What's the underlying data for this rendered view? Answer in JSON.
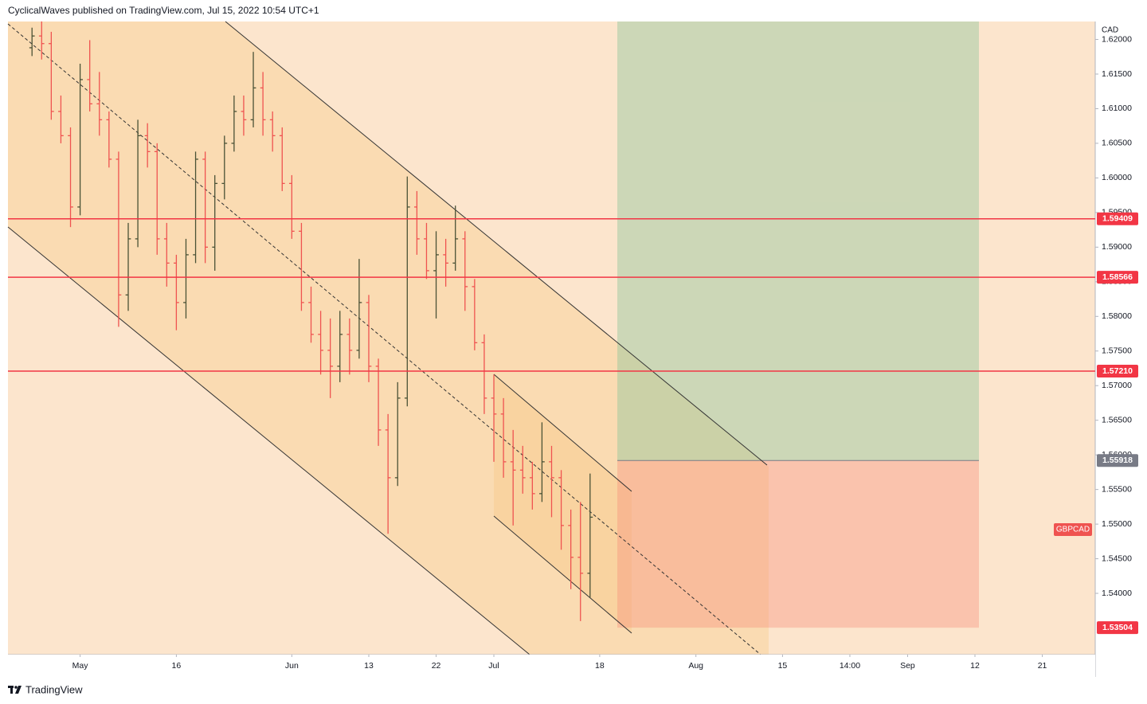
{
  "header": {
    "text": "CyclicalWaves published on TradingView.com, Jul 15, 2022 10:54 UTC+1"
  },
  "footer": {
    "brand": "TradingView"
  },
  "chart_data": {
    "type": "ohlc",
    "symbol": "GBPCAD",
    "currency": "CAD",
    "up_color": "#4a5236",
    "down_color": "#ef5350",
    "grid": false,
    "ylim": [
      1.53115,
      1.62259
    ],
    "yticks": [
      {
        "value": 1.54,
        "label": "1.54000"
      },
      {
        "value": 1.545,
        "label": "1.54500"
      },
      {
        "value": 1.55,
        "label": "1.55000"
      },
      {
        "value": 1.555,
        "label": "1.55500"
      },
      {
        "value": 1.56,
        "label": "1.56000"
      },
      {
        "value": 1.565,
        "label": "1.56500"
      },
      {
        "value": 1.57,
        "label": "1.57000"
      },
      {
        "value": 1.575,
        "label": "1.57500"
      },
      {
        "value": 1.58,
        "label": "1.58000"
      },
      {
        "value": 1.585,
        "label": "1.58500"
      },
      {
        "value": 1.59,
        "label": "1.59000"
      },
      {
        "value": 1.595,
        "label": "1.59500"
      },
      {
        "value": 1.6,
        "label": "1.60000"
      },
      {
        "value": 1.605,
        "label": "1.60500"
      },
      {
        "value": 1.61,
        "label": "1.61000"
      },
      {
        "value": 1.615,
        "label": "1.61500"
      },
      {
        "value": 1.62,
        "label": "1.62000"
      }
    ],
    "hlines": [
      {
        "value": 1.59409,
        "label": "1.59409",
        "color": "#f23645"
      },
      {
        "value": 1.58566,
        "label": "1.58566",
        "color": "#f23645"
      },
      {
        "value": 1.5721,
        "label": "1.57210",
        "color": "#f23645"
      }
    ],
    "position": {
      "entry": {
        "value": 1.55918,
        "label": "1.55918",
        "color": "#787b86"
      },
      "stop": {
        "value": 1.53504,
        "label": "1.53504",
        "color": "#f23645"
      }
    },
    "categories": [
      null,
      null,
      null,
      null,
      null,
      null,
      null,
      "May",
      null,
      null,
      null,
      null,
      null,
      null,
      null,
      null,
      null,
      "16",
      null,
      null,
      null,
      null,
      null,
      null,
      null,
      null,
      null,
      null,
      null,
      "Jun",
      null,
      null,
      null,
      null,
      null,
      null,
      null,
      "13",
      null,
      null,
      null,
      null,
      null,
      null,
      "22",
      null,
      null,
      null,
      null,
      null,
      "Jul",
      null,
      null,
      null,
      null,
      null,
      null,
      null,
      null,
      null,
      null,
      "18",
      null,
      null,
      null,
      null,
      null,
      null,
      null,
      null,
      null,
      "Aug",
      null,
      null,
      null,
      null,
      null,
      null,
      null,
      null,
      "15",
      null,
      null,
      null,
      null,
      null,
      null,
      "14:00",
      null,
      null,
      null,
      null,
      null,
      "Sep",
      null,
      null,
      null,
      null,
      null,
      null,
      "12",
      null,
      null,
      null,
      null,
      null,
      null,
      "21",
      null,
      null,
      null,
      null,
      null
    ],
    "open": [
      null,
      null,
      1.6188,
      1.6205,
      1.6194,
      1.6096,
      1.6061,
      1.5958,
      1.6142,
      1.6107,
      1.6084,
      1.6027,
      1.5831,
      1.5912,
      1.6061,
      1.6038,
      1.5912,
      1.5877,
      1.582,
      1.5889,
      1.6027,
      1.59,
      1.5992,
      1.605,
      1.6096,
      1.6084,
      1.613,
      1.6084,
      1.6061,
      1.5992,
      1.5923,
      1.582,
      1.5774,
      1.5751,
      1.5728,
      1.5774,
      1.5751,
      1.582,
      1.5728,
      1.5636,
      1.5567,
      1.5682,
      1.5958,
      1.5912,
      1.5866,
      1.5889,
      1.5877,
      1.5912,
      1.5843,
      1.5762,
      1.5682,
      1.5659,
      1.559,
      1.5578,
      1.5567,
      1.5544,
      1.559,
      1.5567,
      1.5498,
      1.5452,
      1.5429,
      null,
      null,
      null,
      null,
      null,
      null,
      null,
      null,
      null,
      null,
      null,
      null,
      null,
      null,
      null,
      null,
      null,
      null,
      null,
      null,
      null,
      null,
      null,
      null,
      null,
      null,
      null,
      null,
      null,
      null,
      null,
      null,
      null,
      null,
      null,
      null,
      null,
      null,
      null,
      null,
      null,
      null,
      null,
      null,
      null,
      null,
      null,
      null,
      null,
      null,
      null,
      null
    ],
    "high": [
      null,
      null,
      1.6217,
      1.6226,
      1.6211,
      1.6119,
      1.6073,
      1.6165,
      1.6199,
      1.6153,
      1.6096,
      1.6038,
      1.5935,
      1.6084,
      1.6079,
      1.605,
      1.5935,
      1.5889,
      1.5912,
      1.6038,
      1.6038,
      1.6004,
      1.6061,
      1.6119,
      1.6119,
      1.6182,
      1.6153,
      1.6096,
      1.6073,
      1.6004,
      1.5935,
      1.5843,
      1.5808,
      1.5797,
      1.5808,
      1.5797,
      1.5883,
      1.5831,
      1.5739,
      1.5659,
      1.5705,
      1.6002,
      1.5981,
      1.5935,
      1.5923,
      1.5912,
      1.596,
      1.5923,
      1.5854,
      1.5774,
      1.5716,
      1.5682,
      1.5636,
      1.5613,
      1.559,
      1.5647,
      1.5613,
      1.5578,
      1.5521,
      1.5532,
      1.5573,
      null,
      null,
      null,
      null,
      null,
      null,
      null,
      null,
      null,
      null,
      null,
      null,
      null,
      null,
      null,
      null,
      null,
      null,
      null,
      null,
      null,
      null,
      null,
      null,
      null,
      null,
      null,
      null,
      null,
      null,
      null,
      null,
      null,
      null,
      null,
      null,
      null,
      null,
      null,
      null,
      null,
      null,
      null,
      null,
      null,
      null,
      null,
      null,
      null,
      null,
      null,
      null
    ],
    "low": [
      null,
      null,
      1.6176,
      1.6171,
      1.6084,
      1.605,
      1.5929,
      1.5946,
      1.6096,
      1.6061,
      1.6015,
      1.5785,
      1.5808,
      1.59,
      1.6015,
      1.5889,
      1.5843,
      1.578,
      1.5797,
      1.5877,
      1.5877,
      1.5866,
      1.5969,
      1.6038,
      1.6061,
      1.6073,
      1.6061,
      1.6038,
      1.5981,
      1.5912,
      1.5808,
      1.5762,
      1.5716,
      1.5682,
      1.5705,
      1.5716,
      1.5739,
      1.5705,
      1.5613,
      1.5486,
      1.5555,
      1.567,
      1.5889,
      1.5854,
      1.5797,
      1.5843,
      1.5866,
      1.5808,
      1.5751,
      1.5659,
      1.559,
      1.5567,
      1.5498,
      1.5544,
      1.5521,
      1.5532,
      1.551,
      1.5463,
      1.5406,
      1.536,
      1.5394,
      null,
      null,
      null,
      null,
      null,
      null,
      null,
      null,
      null,
      null,
      null,
      null,
      null,
      null,
      null,
      null,
      null,
      null,
      null,
      null,
      null,
      null,
      null,
      null,
      null,
      null,
      null,
      null,
      null,
      null,
      null,
      null,
      null,
      null,
      null,
      null,
      null,
      null,
      null,
      null,
      null,
      null,
      null,
      null,
      null,
      null,
      null,
      null,
      null,
      null,
      null,
      null
    ],
    "close": [
      null,
      null,
      1.6205,
      1.6194,
      1.6096,
      1.6061,
      1.5958,
      1.6142,
      1.6107,
      1.6084,
      1.6027,
      1.5831,
      1.5912,
      1.6061,
      1.6038,
      1.5912,
      1.5877,
      1.582,
      1.5889,
      1.6027,
      1.59,
      1.5992,
      1.605,
      1.6096,
      1.6084,
      1.613,
      1.6084,
      1.6061,
      1.5992,
      1.5923,
      1.582,
      1.5774,
      1.5751,
      1.5728,
      1.5774,
      1.5751,
      1.582,
      1.5728,
      1.5636,
      1.5567,
      1.5682,
      1.5958,
      1.5912,
      1.5866,
      1.5889,
      1.5877,
      1.5912,
      1.5843,
      1.5762,
      1.5682,
      1.5659,
      1.559,
      1.5578,
      1.5567,
      1.5544,
      1.559,
      1.5567,
      1.5498,
      1.5452,
      1.5429,
      1.551,
      null,
      null,
      null,
      null,
      null,
      null,
      null,
      null,
      null,
      null,
      null,
      null,
      null,
      null,
      null,
      null,
      null,
      null,
      null,
      null,
      null,
      null,
      null,
      null,
      null,
      null,
      null,
      null,
      null,
      null,
      null,
      null,
      null,
      null,
      null,
      null,
      null,
      null,
      null,
      null,
      null,
      null,
      null,
      null,
      null,
      null,
      null,
      null,
      null,
      null,
      null,
      null
    ]
  }
}
